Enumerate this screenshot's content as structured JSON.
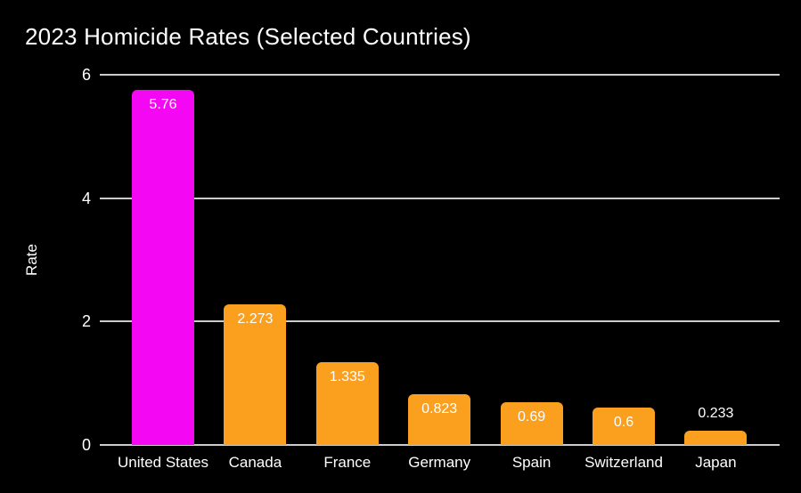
{
  "chart_data": {
    "type": "bar",
    "title": "2023 Homicide Rates (Selected Countries)",
    "ylabel": "Rate",
    "xlabel": "",
    "categories": [
      "United States",
      "Canada",
      "France",
      "Germany",
      "Spain",
      "Switzerland",
      "Japan"
    ],
    "values": [
      5.76,
      2.273,
      1.335,
      0.823,
      0.69,
      0.6,
      0.233
    ],
    "value_labels": [
      "5.76",
      "2.273",
      "1.335",
      "0.823",
      "0.69",
      "0.6",
      "0.233"
    ],
    "yticks": [
      0,
      2,
      4,
      6
    ],
    "ytick_labels": [
      "0",
      "2",
      "4",
      "6"
    ],
    "ylim": [
      0,
      6
    ],
    "grid": "horizontal",
    "legend": "none",
    "colors": {
      "background": "#000000",
      "text": "#FFFFFF",
      "gridline": "#CCCCCC",
      "bar_default": "#FAA01E",
      "bar_highlight": "#F408F4"
    },
    "bar_colors": [
      "#F408F4",
      "#FAA01E",
      "#FAA01E",
      "#FAA01E",
      "#FAA01E",
      "#FAA01E",
      "#FAA01E"
    ]
  }
}
